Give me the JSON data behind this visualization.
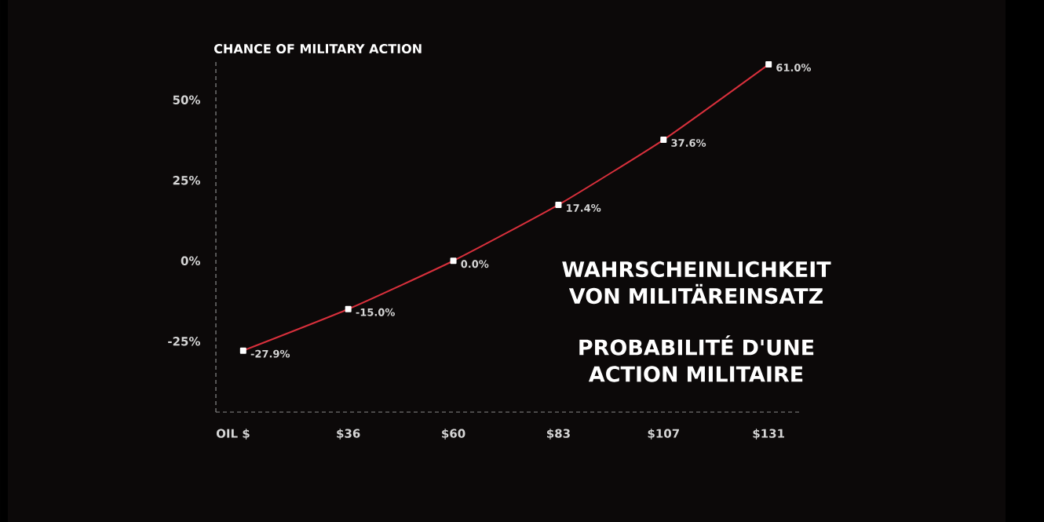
{
  "chart_data": {
    "type": "line",
    "title": "CHANCE OF MILITARY ACTION",
    "xlabel": "OIL $",
    "categories": [
      null,
      "$36",
      "$60",
      "$83",
      "$107",
      "$131"
    ],
    "series": [
      {
        "color": "#d8303c",
        "values": [
          -27.9,
          -15.0,
          0.0,
          17.4,
          37.6,
          61.0
        ],
        "value_labels": [
          "-27.9%",
          "-15.0%",
          "0.0%",
          "17.4%",
          "37.6%",
          "61.0%"
        ]
      }
    ],
    "ylim": [
      -47,
      62
    ],
    "yticks": [
      {
        "value": -25,
        "label": "-25%"
      },
      {
        "value": 0,
        "label": "0%"
      },
      {
        "value": 25,
        "label": "25%"
      },
      {
        "value": 50,
        "label": "50%"
      }
    ],
    "marker": "square",
    "line_style": "solid",
    "annotations": [
      "WAHRSCHEINLICHKEIT VON MILITÄREINSATZ",
      "PROBABILITÉ D'UNE ACTION MILITAIRE"
    ]
  }
}
